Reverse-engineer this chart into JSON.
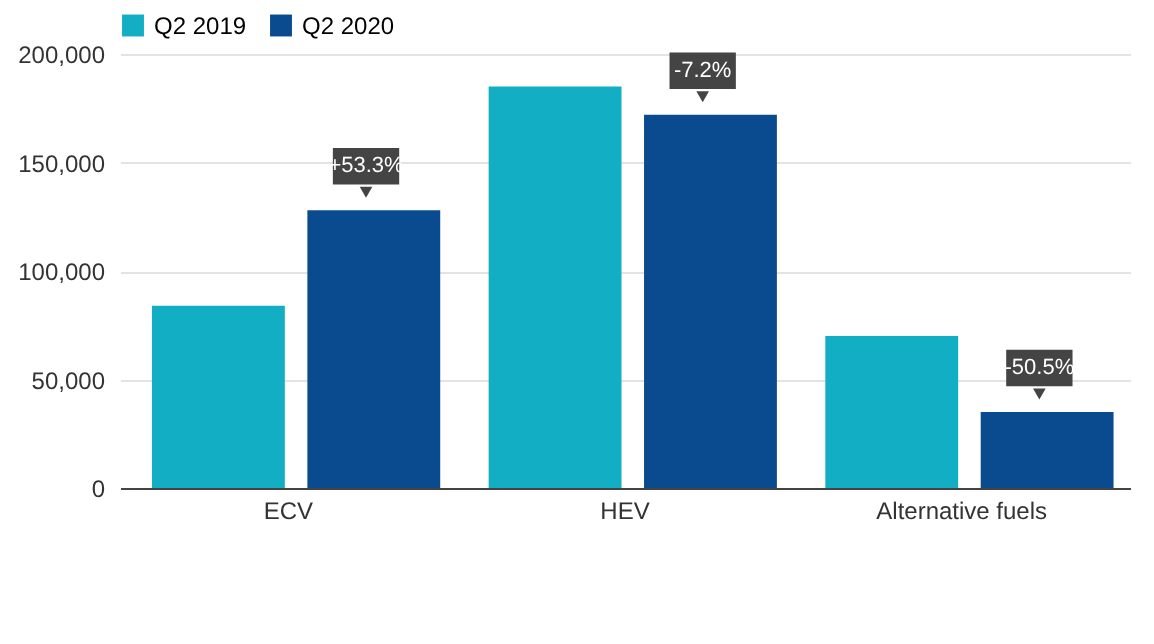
{
  "chart_data": {
    "type": "bar",
    "categories": [
      "ECV",
      "HEV",
      "Alternative fuels"
    ],
    "series": [
      {
        "name": "Q2 2019",
        "color": "#12afc4",
        "values": [
          84000,
          185000,
          70000
        ]
      },
      {
        "name": "Q2 2020",
        "color": "#0a4b8f",
        "values": [
          128000,
          172000,
          35000
        ]
      }
    ],
    "ylim": [
      0,
      200000
    ],
    "yticks": [
      0,
      {
        "value": 50000,
        "label": "50,000"
      },
      {
        "value": 100000,
        "label": "100,000"
      },
      {
        "value": 150000,
        "label": "150,000"
      },
      {
        "value": 200000,
        "label": "200,000"
      }
    ],
    "grid": "y",
    "legend": "top left",
    "annotations": [
      "+53.3%",
      "-7.2%",
      "-50.5%"
    ]
  }
}
